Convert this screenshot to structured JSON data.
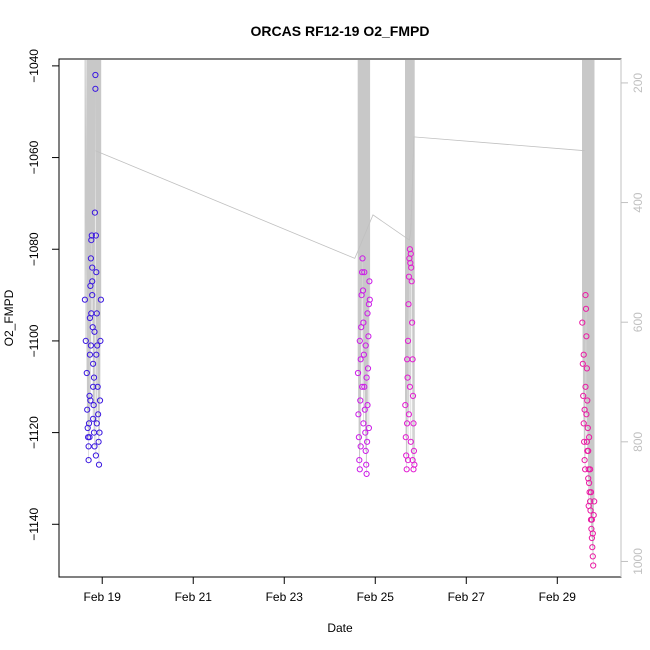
{
  "chart_data": {
    "type": "scatter",
    "title": "ORCAS RF12-19 O2_FMPD",
    "xlabel": "Date",
    "ylabel": "O2_FMPD",
    "x_ticks": [
      "Feb 19",
      "Feb 21",
      "Feb 23",
      "Feb 25",
      "Feb 27",
      "Feb 29"
    ],
    "x_tick_days": [
      19,
      21,
      23,
      25,
      27,
      29
    ],
    "x_range_days": [
      18.05,
      30.4
    ],
    "y_ticks": [
      -1040,
      -1060,
      -1080,
      -1100,
      -1120,
      -1140
    ],
    "y_range": [
      -1151.5,
      -1038.5
    ],
    "right_axis": {
      "ticks": [
        200,
        400,
        600,
        800,
        1000
      ],
      "range": [
        1026,
        160
      ],
      "color": "#c0c0c0"
    },
    "grid": false,
    "marker": "open-circle",
    "series": [
      {
        "flight_day": 18.8,
        "color": "#3b18e0",
        "points": [
          [
            18.62,
            -1091
          ],
          [
            18.64,
            -1100
          ],
          [
            18.66,
            -1107
          ],
          [
            18.67,
            -1115
          ],
          [
            18.68,
            -1119
          ],
          [
            18.69,
            -1121
          ],
          [
            18.7,
            -1123
          ],
          [
            18.7,
            -1126
          ],
          [
            18.71,
            -1118
          ],
          [
            18.72,
            -1112
          ],
          [
            18.73,
            -1103
          ],
          [
            18.73,
            -1095
          ],
          [
            18.74,
            -1088
          ],
          [
            18.75,
            -1082
          ],
          [
            18.76,
            -1078
          ],
          [
            18.77,
            -1077
          ],
          [
            18.78,
            -1084
          ],
          [
            18.78,
            -1090
          ],
          [
            18.79,
            -1097
          ],
          [
            18.8,
            -1105
          ],
          [
            18.8,
            -1110
          ],
          [
            18.81,
            -1114
          ],
          [
            18.82,
            -1120
          ],
          [
            18.83,
            -1123
          ],
          [
            18.84,
            -1072
          ],
          [
            18.85,
            -1042
          ],
          [
            18.85,
            -1045
          ],
          [
            18.86,
            -1077
          ],
          [
            18.87,
            -1085
          ],
          [
            18.88,
            -1094
          ],
          [
            18.89,
            -1101
          ],
          [
            18.9,
            -1110
          ],
          [
            18.91,
            -1116
          ],
          [
            18.92,
            -1122
          ],
          [
            18.93,
            -1127
          ],
          [
            18.94,
            -1120
          ],
          [
            18.95,
            -1113
          ],
          [
            18.96,
            -1100
          ],
          [
            18.97,
            -1091
          ],
          [
            18.78,
            -1087
          ],
          [
            18.76,
            -1094
          ],
          [
            18.75,
            -1101
          ],
          [
            18.83,
            -1098
          ],
          [
            18.88,
            -1118
          ],
          [
            18.86,
            -1125
          ],
          [
            18.82,
            -1108
          ],
          [
            18.74,
            -1113
          ],
          [
            18.72,
            -1121
          ],
          [
            18.8,
            -1117
          ],
          [
            18.87,
            -1103
          ]
        ]
      },
      {
        "flight_day": 24.8,
        "color": "#cc1ce8",
        "points": [
          [
            24.62,
            -1107
          ],
          [
            24.63,
            -1116
          ],
          [
            24.64,
            -1121
          ],
          [
            24.65,
            -1126
          ],
          [
            24.66,
            -1128
          ],
          [
            24.67,
            -1113
          ],
          [
            24.68,
            -1104
          ],
          [
            24.69,
            -1097
          ],
          [
            24.7,
            -1090
          ],
          [
            24.71,
            -1085
          ],
          [
            24.72,
            -1082
          ],
          [
            24.73,
            -1089
          ],
          [
            24.74,
            -1096
          ],
          [
            24.75,
            -1103
          ],
          [
            24.76,
            -1110
          ],
          [
            24.77,
            -1115
          ],
          [
            24.78,
            -1120
          ],
          [
            24.79,
            -1124
          ],
          [
            24.8,
            -1127
          ],
          [
            24.81,
            -1129
          ],
          [
            24.82,
            -1122
          ],
          [
            24.83,
            -1114
          ],
          [
            24.84,
            -1106
          ],
          [
            24.85,
            -1099
          ],
          [
            24.86,
            -1092
          ],
          [
            24.87,
            -1087
          ],
          [
            24.88,
            -1091
          ],
          [
            24.76,
            -1085
          ],
          [
            24.74,
            -1118
          ],
          [
            24.68,
            -1123
          ],
          [
            24.71,
            -1110
          ],
          [
            24.79,
            -1101
          ],
          [
            24.83,
            -1094
          ],
          [
            24.66,
            -1100
          ],
          [
            24.86,
            -1119
          ],
          [
            24.81,
            -1108
          ]
        ]
      },
      {
        "flight_day": 25.8,
        "color": "#e21bd2",
        "points": [
          [
            25.66,
            -1114
          ],
          [
            25.67,
            -1121
          ],
          [
            25.68,
            -1125
          ],
          [
            25.69,
            -1128
          ],
          [
            25.7,
            -1118
          ],
          [
            25.71,
            -1108
          ],
          [
            25.72,
            -1100
          ],
          [
            25.73,
            -1092
          ],
          [
            25.74,
            -1086
          ],
          [
            25.75,
            -1082
          ],
          [
            25.76,
            -1080
          ],
          [
            25.77,
            -1083
          ],
          [
            25.78,
            -1081
          ],
          [
            25.79,
            -1084
          ],
          [
            25.8,
            -1087
          ],
          [
            25.81,
            -1096
          ],
          [
            25.82,
            -1104
          ],
          [
            25.83,
            -1112
          ],
          [
            25.84,
            -1118
          ],
          [
            25.85,
            -1124
          ],
          [
            25.86,
            -1127
          ],
          [
            25.72,
            -1126
          ],
          [
            25.74,
            -1116
          ],
          [
            25.7,
            -1104
          ],
          [
            25.78,
            -1122
          ],
          [
            25.82,
            -1126
          ],
          [
            25.76,
            -1110
          ],
          [
            25.84,
            -1128
          ]
        ]
      },
      {
        "flight_day": 29.7,
        "color": "#ea1aa4",
        "points": [
          [
            29.55,
            -1096
          ],
          [
            29.56,
            -1105
          ],
          [
            29.57,
            -1112
          ],
          [
            29.58,
            -1118
          ],
          [
            29.59,
            -1122
          ],
          [
            29.6,
            -1126
          ],
          [
            29.61,
            -1128
          ],
          [
            29.62,
            -1090
          ],
          [
            29.63,
            -1093
          ],
          [
            29.64,
            -1099
          ],
          [
            29.65,
            -1106
          ],
          [
            29.66,
            -1113
          ],
          [
            29.67,
            -1119
          ],
          [
            29.68,
            -1124
          ],
          [
            29.69,
            -1128
          ],
          [
            29.7,
            -1131
          ],
          [
            29.71,
            -1133
          ],
          [
            29.72,
            -1135
          ],
          [
            29.73,
            -1137
          ],
          [
            29.74,
            -1139
          ],
          [
            29.75,
            -1141
          ],
          [
            29.76,
            -1143
          ],
          [
            29.77,
            -1145
          ],
          [
            29.78,
            -1147
          ],
          [
            29.79,
            -1149
          ],
          [
            29.8,
            -1138
          ],
          [
            29.81,
            -1135
          ],
          [
            29.62,
            -1110
          ],
          [
            29.64,
            -1116
          ],
          [
            29.66,
            -1124
          ],
          [
            29.68,
            -1130
          ],
          [
            29.7,
            -1121
          ],
          [
            29.72,
            -1128
          ],
          [
            29.74,
            -1133
          ],
          [
            29.76,
            -1139
          ],
          [
            29.78,
            -1142
          ],
          [
            29.58,
            -1103
          ],
          [
            29.6,
            -1115
          ],
          [
            29.65,
            -1122
          ],
          [
            29.69,
            -1136
          ]
        ]
      }
    ],
    "gray_connector": [
      [
        18.85,
        -1058.5
      ],
      [
        24.55,
        -1082
      ],
      [
        24.95,
        -1072.5
      ],
      [
        25.75,
        -1078
      ],
      [
        25.78,
        -1076
      ],
      [
        25.85,
        -1055.5
      ],
      [
        29.6,
        -1058.5
      ]
    ]
  }
}
